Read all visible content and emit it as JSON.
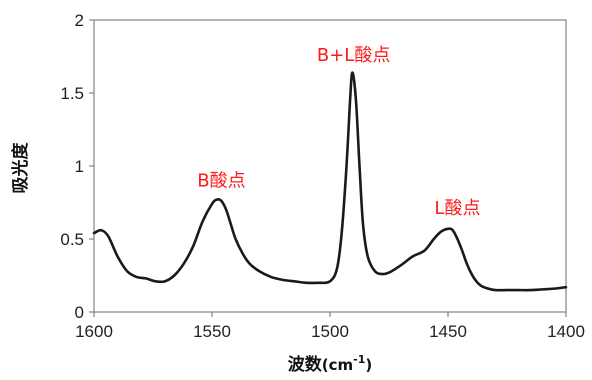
{
  "chart_data": {
    "type": "line",
    "title": "",
    "xlabel": "波数",
    "xlabel_unit_prefix": "(cm",
    "xlabel_unit_exp": "-1",
    "xlabel_unit_suffix": ")",
    "ylabel": "吸光度",
    "xlim": [
      1600,
      1400
    ],
    "x_reversed": true,
    "ylim": [
      0,
      2
    ],
    "xticks": [
      1600,
      1550,
      1500,
      1450,
      1400
    ],
    "yticks": [
      0,
      0.5,
      1,
      1.5,
      2
    ],
    "ytick_labels": [
      "0",
      "0.5",
      "1",
      "1.5",
      "2"
    ],
    "grid": false,
    "line_color": "#1a1a1a",
    "annotation_color": "#ff1a1a",
    "series": [
      {
        "x": [
          1600,
          1597,
          1594,
          1590,
          1586,
          1582,
          1578,
          1574,
          1570,
          1566,
          1562,
          1558,
          1554,
          1550,
          1548,
          1546,
          1544,
          1542,
          1540,
          1537,
          1534,
          1530,
          1525,
          1520,
          1515,
          1510,
          1505,
          1500,
          1497,
          1495,
          1493,
          1491.5,
          1490.5,
          1489,
          1487.5,
          1486,
          1484,
          1481,
          1478,
          1475,
          1470,
          1465,
          1460,
          1456,
          1453,
          1450,
          1448,
          1446,
          1444,
          1442,
          1440,
          1438,
          1436,
          1433,
          1430,
          1425,
          1420,
          1415,
          1410,
          1405,
          1400
        ],
        "y": [
          0.54,
          0.56,
          0.52,
          0.38,
          0.28,
          0.24,
          0.23,
          0.21,
          0.21,
          0.25,
          0.33,
          0.45,
          0.62,
          0.74,
          0.77,
          0.76,
          0.7,
          0.6,
          0.5,
          0.4,
          0.33,
          0.28,
          0.24,
          0.22,
          0.21,
          0.2,
          0.2,
          0.21,
          0.3,
          0.55,
          1.0,
          1.45,
          1.64,
          1.45,
          1.0,
          0.6,
          0.38,
          0.28,
          0.26,
          0.27,
          0.32,
          0.38,
          0.42,
          0.5,
          0.55,
          0.57,
          0.56,
          0.5,
          0.42,
          0.33,
          0.26,
          0.21,
          0.18,
          0.16,
          0.15,
          0.15,
          0.15,
          0.15,
          0.155,
          0.16,
          0.17
        ]
      }
    ],
    "annotations": [
      {
        "text": "B酸点",
        "x": 1546,
        "y": 0.86
      },
      {
        "text": "B+L酸点",
        "x": 1490,
        "y": 1.72
      },
      {
        "text": "L酸点",
        "x": 1446,
        "y": 0.67
      }
    ]
  }
}
